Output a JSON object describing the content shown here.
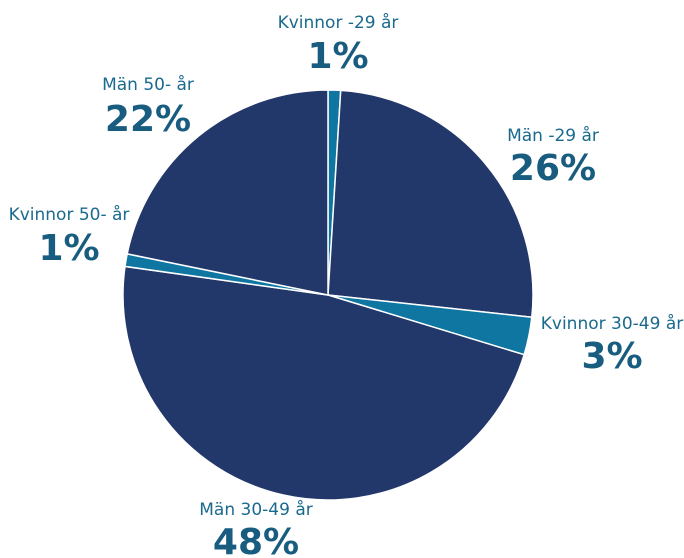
{
  "colors": {
    "men": "#22376a",
    "women": "#0f76a2",
    "label_name": "#1a6a8e",
    "label_pct": "#185c80",
    "slice_border": "#ffffff"
  },
  "chart_data": {
    "type": "pie",
    "start_angle_deg": 0,
    "direction": "clockwise",
    "slices": [
      {
        "label": "Kvinnor -29 år",
        "value": 1,
        "display": "1%",
        "group": "women"
      },
      {
        "label": "Män -29 år",
        "value": 26,
        "display": "26%",
        "group": "men"
      },
      {
        "label": "Kvinnor 30-49 år",
        "value": 3,
        "display": "3%",
        "group": "women"
      },
      {
        "label": "Män 30-49 år",
        "value": 48,
        "display": "48%",
        "group": "men"
      },
      {
        "label": "Kvinnor 50- år",
        "value": 1,
        "display": "1%",
        "group": "women"
      },
      {
        "label": "Män 50- år",
        "value": 22,
        "display": "22%",
        "group": "men"
      }
    ]
  }
}
